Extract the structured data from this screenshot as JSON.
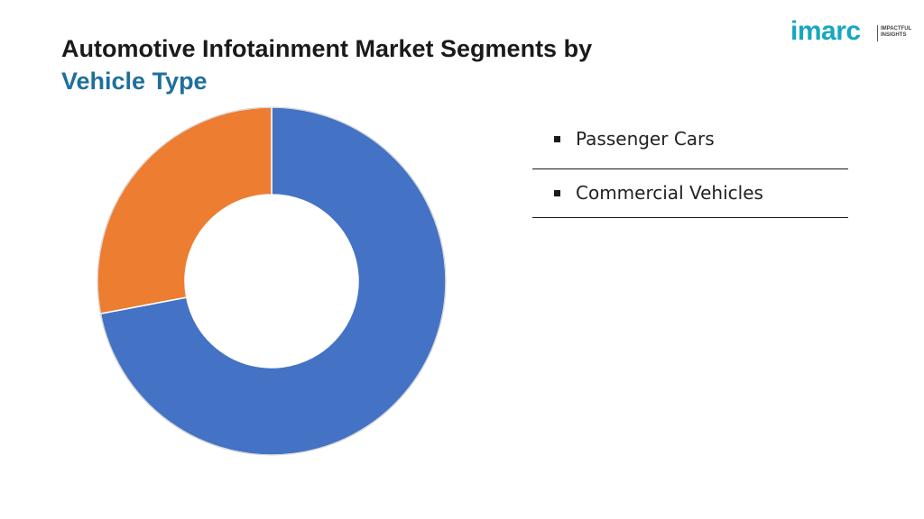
{
  "header": {
    "title_line1": "Automotive Infotainment Market Segments by",
    "title_line2": "Vehicle Type",
    "title_colors": {
      "line1": "#1a1a1a",
      "line2": "#1f6f9c"
    }
  },
  "logo": {
    "wordmark": "imarc",
    "tagline": [
      "IMPACTFUL",
      "INSIGHTS"
    ],
    "color": "#17a7c0"
  },
  "chart_data": {
    "type": "pie",
    "variant": "donut",
    "title": "",
    "categories": [
      "Passenger Cars",
      "Commercial Vehicles"
    ],
    "values": [
      72,
      28
    ],
    "colors": [
      "#4472c4",
      "#ed7d31"
    ],
    "legend_placement": "right"
  },
  "legend": {
    "items": [
      {
        "label": "Passenger Cars"
      },
      {
        "label": "Commercial Vehicles"
      }
    ]
  }
}
